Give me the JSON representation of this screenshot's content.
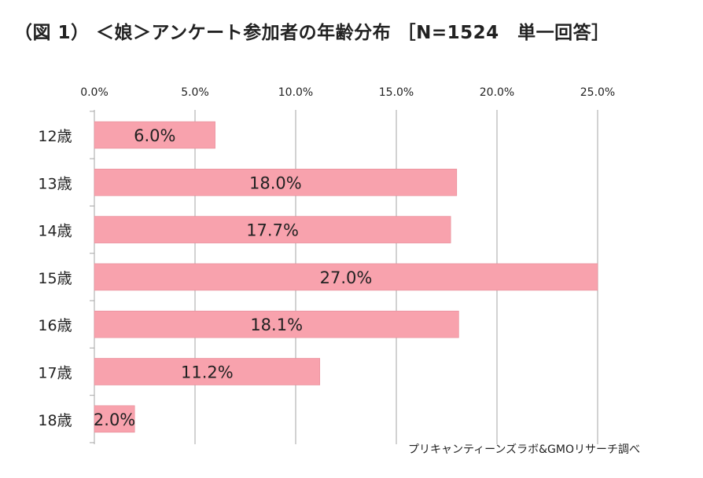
{
  "title": "（図 1） ＜娘＞アンケート参加者の年齢分布 ［N=1524　単一回答］",
  "source": "プリキャンティーンズラボ&GMOリサーチ調べ",
  "colors": {
    "bar": "#f8a2ad",
    "bar_stroke": "#e58a96",
    "grid": "#a6a6a6",
    "text": "#222222"
  },
  "chart_data": {
    "type": "bar",
    "orientation": "horizontal",
    "categories": [
      "12歳",
      "13歳",
      "14歳",
      "15歳",
      "16歳",
      "17歳",
      "18歳"
    ],
    "values": [
      6.0,
      18.0,
      17.7,
      27.0,
      18.1,
      11.2,
      2.0
    ],
    "value_labels": [
      "6.0%",
      "18.0%",
      "17.7%",
      "27.0%",
      "18.1%",
      "11.2%",
      "2.0%"
    ],
    "xlim": [
      0,
      25
    ],
    "xticks": [
      0,
      5,
      10,
      15,
      20,
      25
    ],
    "xtick_labels": [
      "0.0%",
      "5.0%",
      "10.0%",
      "15.0%",
      "20.0%",
      "25.0%"
    ],
    "axis_position": "top",
    "grid": true,
    "title": "（図 1） ＜娘＞アンケート参加者の年齢分布 ［N=1524　単一回答］"
  }
}
